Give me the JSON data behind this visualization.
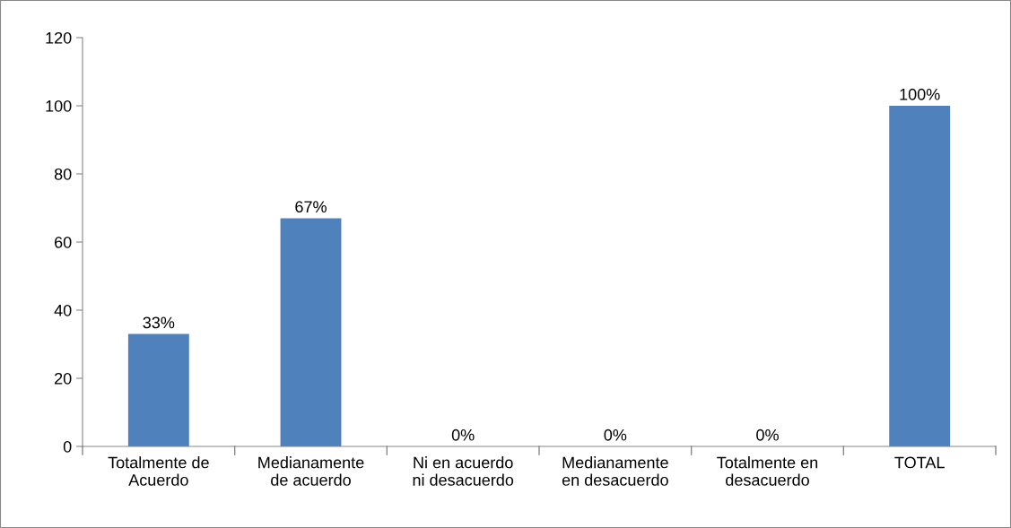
{
  "chart_data": {
    "type": "bar",
    "categories": [
      "Totalmente de\nAcuerdo",
      "Medianamente\nde acuerdo",
      "Ni en acuerdo\nni desacuerdo",
      "Medianamente\nen desacuerdo",
      "Totalmente en\ndesacuerdo",
      "TOTAL"
    ],
    "values": [
      33,
      67,
      0,
      0,
      0,
      100
    ],
    "value_labels": [
      "33%",
      "67%",
      "0%",
      "0%",
      "0%",
      "100%"
    ],
    "color": "#4f81bd",
    "ylim": [
      0,
      120
    ],
    "yticks": [
      0,
      20,
      40,
      60,
      80,
      100,
      120
    ],
    "grid": false,
    "legend": false
  }
}
